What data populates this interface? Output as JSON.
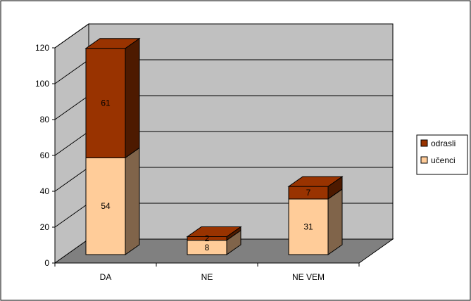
{
  "chart_data": {
    "type": "bar",
    "stacked": true,
    "three_d": true,
    "categories": [
      "DA",
      "NE",
      "NE VEM"
    ],
    "series": [
      {
        "name": "učenci",
        "values": [
          54,
          8,
          31
        ],
        "color": "#FFCC99"
      },
      {
        "name": "odrasli",
        "values": [
          61,
          2,
          7
        ],
        "color": "#993300"
      }
    ],
    "yticks": [
      "0",
      "20",
      "40",
      "60",
      "80",
      "100",
      "120"
    ],
    "ylim": [
      0,
      120
    ],
    "grid": true,
    "legend_position": "right",
    "colors": {
      "wall": "#C0C0C0",
      "floor": "#808080",
      "side_light": "#80644A",
      "side_dark": "#4D1A00"
    }
  }
}
